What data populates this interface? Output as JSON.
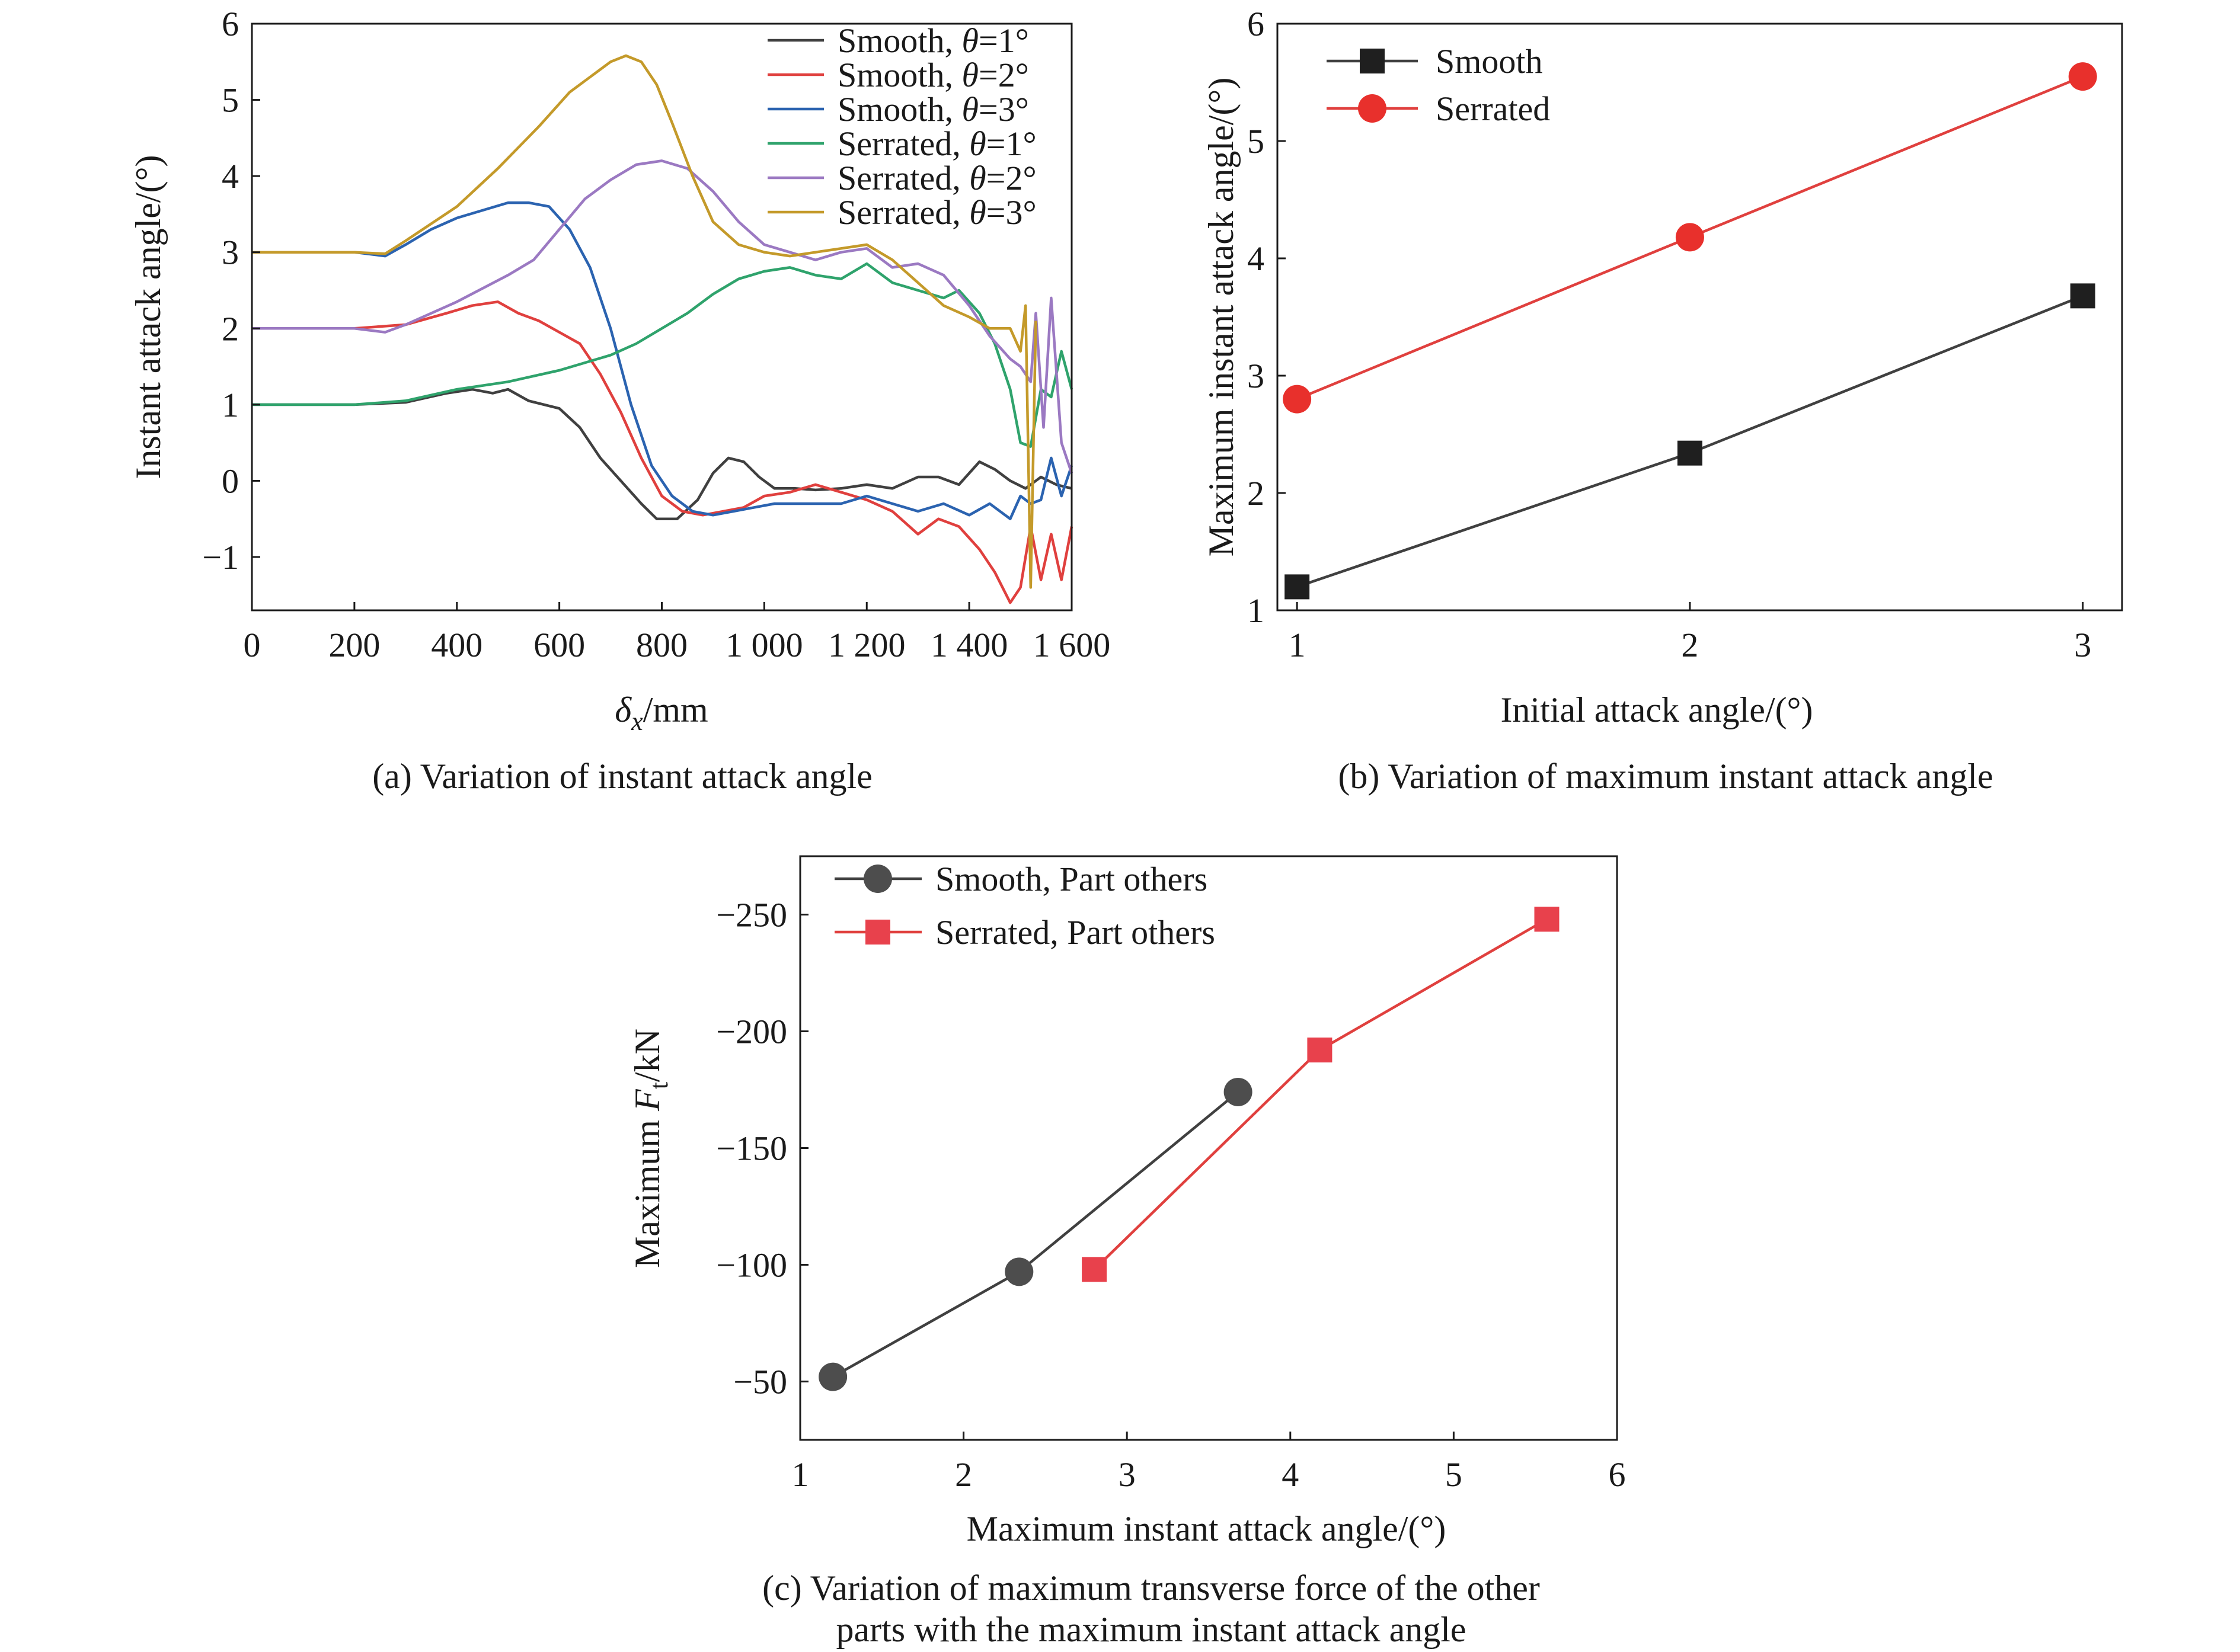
{
  "chart_data": [
    {
      "id": "a",
      "type": "line",
      "caption": "(a) Variation of instant attack angle",
      "xlabel": "δx/mm",
      "xlabel_base": "δ",
      "xlabel_sub": "x",
      "xlabel_rest": "/mm",
      "ylabel": "Instant attack angle/(°)",
      "xlim": [
        0,
        1600
      ],
      "ylim": [
        -1.7,
        6
      ],
      "xticks": [
        0,
        200,
        400,
        600,
        800,
        1000,
        1200,
        1400,
        1600
      ],
      "xtick_labels": [
        "0",
        "200",
        "400",
        "600",
        "800",
        "1 000",
        "1 200",
        "1 400",
        "1 600"
      ],
      "yticks": [
        -1,
        0,
        1,
        2,
        3,
        4,
        5,
        6
      ],
      "ytick_labels": [
        "−1",
        "0",
        "1",
        "2",
        "3",
        "4",
        "5",
        "6"
      ],
      "grid": false,
      "legend_position": "top-right",
      "series": [
        {
          "name": "Smooth, θ=1°",
          "name_prefix": "Smooth, ",
          "name_symbol": "θ",
          "name_suffix": "=1°",
          "color": "#404040",
          "x": [
            0,
            100,
            200,
            300,
            380,
            430,
            470,
            500,
            540,
            600,
            640,
            680,
            720,
            760,
            790,
            830,
            870,
            900,
            930,
            960,
            990,
            1020,
            1060,
            1100,
            1150,
            1200,
            1250,
            1300,
            1340,
            1380,
            1420,
            1450,
            1480,
            1510,
            1540,
            1570,
            1600
          ],
          "y": [
            1.0,
            1.0,
            1.0,
            1.03,
            1.15,
            1.2,
            1.15,
            1.2,
            1.05,
            0.95,
            0.7,
            0.3,
            0.0,
            -0.3,
            -0.5,
            -0.5,
            -0.25,
            0.1,
            0.3,
            0.25,
            0.05,
            -0.1,
            -0.1,
            -0.12,
            -0.1,
            -0.05,
            -0.1,
            0.05,
            0.05,
            -0.05,
            0.25,
            0.15,
            0.0,
            -0.1,
            0.05,
            -0.05,
            -0.1
          ]
        },
        {
          "name": "Smooth, θ=2°",
          "name_prefix": "Smooth, ",
          "name_symbol": "θ",
          "name_suffix": "=2°",
          "color": "#e0403e",
          "x": [
            0,
            100,
            200,
            300,
            380,
            430,
            480,
            520,
            560,
            600,
            640,
            680,
            720,
            760,
            800,
            840,
            880,
            920,
            960,
            1000,
            1050,
            1100,
            1150,
            1200,
            1250,
            1300,
            1340,
            1380,
            1420,
            1450,
            1480,
            1500,
            1520,
            1540,
            1560,
            1580,
            1600
          ],
          "y": [
            2.0,
            2.0,
            2.0,
            2.05,
            2.2,
            2.3,
            2.35,
            2.2,
            2.1,
            1.95,
            1.8,
            1.4,
            0.9,
            0.3,
            -0.2,
            -0.4,
            -0.45,
            -0.4,
            -0.35,
            -0.2,
            -0.15,
            -0.05,
            -0.15,
            -0.25,
            -0.4,
            -0.7,
            -0.5,
            -0.6,
            -0.9,
            -1.2,
            -1.6,
            -1.4,
            -0.6,
            -1.3,
            -0.7,
            -1.3,
            -0.6
          ]
        },
        {
          "name": "Smooth, θ=3°",
          "name_prefix": "Smooth, ",
          "name_symbol": "θ",
          "name_suffix": "=3°",
          "color": "#2b63b0",
          "x": [
            0,
            100,
            200,
            260,
            300,
            350,
            400,
            450,
            500,
            540,
            580,
            620,
            660,
            700,
            740,
            780,
            820,
            860,
            900,
            940,
            980,
            1020,
            1060,
            1100,
            1150,
            1200,
            1250,
            1300,
            1350,
            1400,
            1440,
            1480,
            1500,
            1520,
            1540,
            1560,
            1580,
            1600
          ],
          "y": [
            3.0,
            3.0,
            3.0,
            2.95,
            3.1,
            3.3,
            3.45,
            3.55,
            3.65,
            3.65,
            3.6,
            3.3,
            2.8,
            2.0,
            1.0,
            0.2,
            -0.2,
            -0.4,
            -0.45,
            -0.4,
            -0.35,
            -0.3,
            -0.3,
            -0.3,
            -0.3,
            -0.2,
            -0.3,
            -0.4,
            -0.3,
            -0.45,
            -0.3,
            -0.5,
            -0.2,
            -0.3,
            -0.25,
            0.3,
            -0.2,
            0.2
          ]
        },
        {
          "name": "Serrated, θ=1°",
          "name_prefix": "Serrated, ",
          "name_symbol": "θ",
          "name_suffix": "=1°",
          "color": "#2fa36c",
          "x": [
            0,
            100,
            200,
            300,
            400,
            500,
            600,
            700,
            750,
            800,
            850,
            900,
            950,
            1000,
            1050,
            1100,
            1150,
            1200,
            1250,
            1300,
            1350,
            1380,
            1420,
            1450,
            1480,
            1500,
            1520,
            1540,
            1560,
            1580,
            1600
          ],
          "y": [
            1.0,
            1.0,
            1.0,
            1.05,
            1.2,
            1.3,
            1.45,
            1.65,
            1.8,
            2.0,
            2.2,
            2.45,
            2.65,
            2.75,
            2.8,
            2.7,
            2.65,
            2.85,
            2.6,
            2.5,
            2.4,
            2.5,
            2.2,
            1.8,
            1.2,
            0.5,
            0.45,
            1.2,
            1.1,
            1.7,
            1.2
          ]
        },
        {
          "name": "Serrated, θ=2°",
          "name_prefix": "Serrated, ",
          "name_symbol": "θ",
          "name_suffix": "=2°",
          "color": "#9b79c2",
          "x": [
            0,
            100,
            200,
            260,
            300,
            400,
            500,
            550,
            600,
            650,
            700,
            750,
            800,
            850,
            900,
            950,
            1000,
            1050,
            1100,
            1150,
            1200,
            1250,
            1300,
            1350,
            1400,
            1440,
            1480,
            1500,
            1520,
            1530,
            1545,
            1560,
            1580,
            1600
          ],
          "y": [
            2.0,
            2.0,
            2.0,
            1.95,
            2.05,
            2.35,
            2.7,
            2.9,
            3.3,
            3.7,
            3.95,
            4.15,
            4.2,
            4.1,
            3.8,
            3.4,
            3.1,
            3.0,
            2.9,
            3.0,
            3.05,
            2.8,
            2.85,
            2.7,
            2.3,
            1.9,
            1.6,
            1.5,
            1.3,
            2.2,
            0.7,
            2.4,
            0.5,
            0.1
          ]
        },
        {
          "name": "Serrated, θ=3°",
          "name_prefix": "Serrated, ",
          "name_symbol": "θ",
          "name_suffix": "=3°",
          "color": "#c49a2a",
          "x": [
            0,
            100,
            200,
            260,
            300,
            400,
            480,
            560,
            620,
            660,
            700,
            730,
            760,
            790,
            820,
            860,
            900,
            950,
            1000,
            1050,
            1100,
            1150,
            1200,
            1250,
            1300,
            1350,
            1400,
            1440,
            1480,
            1500,
            1510,
            1520,
            1530
          ],
          "y": [
            3.0,
            3.0,
            3.0,
            2.98,
            3.15,
            3.6,
            4.1,
            4.65,
            5.1,
            5.3,
            5.5,
            5.58,
            5.5,
            5.2,
            4.7,
            4.0,
            3.4,
            3.1,
            3.0,
            2.95,
            3.0,
            3.05,
            3.1,
            2.9,
            2.6,
            2.3,
            2.15,
            2.0,
            2.0,
            1.7,
            2.3,
            -1.4,
            2.1
          ]
        }
      ]
    },
    {
      "id": "b",
      "type": "line",
      "caption": "(b) Variation of maximum instant attack angle",
      "xlabel": "Initial attack angle/(°)",
      "ylabel": "Maximum instant attack angle/(°)",
      "xlim": [
        0.95,
        3.1
      ],
      "ylim": [
        1,
        6
      ],
      "xticks": [
        1,
        2,
        3
      ],
      "xtick_labels": [
        "1",
        "2",
        "3"
      ],
      "yticks": [
        1,
        2,
        3,
        4,
        5,
        6
      ],
      "ytick_labels": [
        "1",
        "2",
        "3",
        "4",
        "5",
        "6"
      ],
      "grid": false,
      "legend_position": "top-left",
      "series": [
        {
          "name": "Smooth",
          "color": "#404040",
          "marker_color": "#1f1f1f",
          "marker": "square",
          "x": [
            1,
            2,
            3
          ],
          "y": [
            1.2,
            2.34,
            3.68
          ]
        },
        {
          "name": "Serrated",
          "color": "#e0403e",
          "marker_color": "#e8302c",
          "marker": "circle",
          "x": [
            1,
            2,
            3
          ],
          "y": [
            2.8,
            4.18,
            5.55
          ]
        }
      ]
    },
    {
      "id": "c",
      "type": "line",
      "caption_lines": [
        "(c) Variation of maximum transverse force of the other",
        "parts with the maximum instant attack angle"
      ],
      "xlabel": "Maximum instant attack angle/(°)",
      "ylabel": "Maximum Ft/kN",
      "ylabel_prefix": "Maximum ",
      "ylabel_base": "F",
      "ylabel_sub": "t",
      "ylabel_rest": "/kN",
      "xlim": [
        1,
        6
      ],
      "ylim": [
        -25,
        -275
      ],
      "y_axis_inverted": true,
      "xticks": [
        1,
        2,
        3,
        4,
        5,
        6
      ],
      "xtick_labels": [
        "1",
        "2",
        "3",
        "4",
        "5",
        "6"
      ],
      "yticks": [
        -50,
        -100,
        -150,
        -200,
        -250
      ],
      "ytick_labels": [
        "−50",
        "−100",
        "−150",
        "−200",
        "−250"
      ],
      "grid": false,
      "legend_position": "top-left",
      "series": [
        {
          "name": "Smooth, Part others",
          "color": "#404040",
          "marker_color": "#4d4d4d",
          "marker": "circle",
          "x": [
            1.2,
            2.34,
            3.68
          ],
          "y": [
            -52,
            -97,
            -174
          ]
        },
        {
          "name": "Serrated, Part others",
          "color": "#e0403e",
          "marker_color": "#e8414c",
          "marker": "square",
          "x": [
            2.8,
            4.18,
            5.57
          ],
          "y": [
            -98,
            -192,
            -248
          ]
        }
      ]
    }
  ]
}
